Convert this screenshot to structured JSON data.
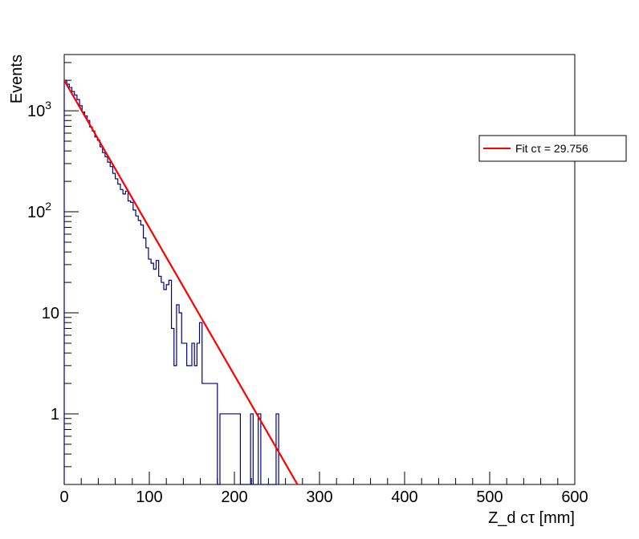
{
  "chart_data": {
    "type": "histogram",
    "title": "",
    "xlabel": "Z_d cτ [mm]",
    "ylabel": "Events",
    "xlim": [
      0,
      600
    ],
    "ylim": [
      0.2,
      3600
    ],
    "yscale": "log",
    "grid": false,
    "x_tick_labels": [
      "0",
      "100",
      "200",
      "300",
      "400",
      "500",
      "600"
    ],
    "y_tick_labels": [
      {
        "value": 1,
        "label": "1"
      },
      {
        "value": 10,
        "label": "10"
      },
      {
        "value": 100,
        "label": "10",
        "exp": "2"
      },
      {
        "value": 1000,
        "label": "10",
        "exp": "3"
      }
    ],
    "histogram": {
      "name": "",
      "color": "#000080",
      "bin_width": 3,
      "x_start": 0,
      "values": [
        2000,
        1830,
        1700,
        1550,
        1430,
        1290,
        1120,
        970,
        890,
        800,
        690,
        630,
        550,
        510,
        440,
        385,
        350,
        310,
        280,
        240,
        212,
        188,
        166,
        150,
        160,
        128,
        124,
        104,
        91,
        82,
        74,
        55,
        44,
        34,
        31,
        27,
        33,
        23,
        20,
        17,
        19,
        21,
        7,
        3,
        12,
        10,
        5,
        5,
        3,
        3,
        5,
        3,
        5,
        8,
        2,
        2,
        2,
        2,
        2,
        2,
        0,
        1,
        1,
        1,
        1,
        1,
        1,
        1,
        1,
        0,
        0,
        0,
        0,
        1,
        0,
        0,
        1,
        0,
        0,
        0,
        0,
        0,
        0,
        1
      ]
    },
    "fit": {
      "name": "Fit cτ = 29.756",
      "color": "#ff0000",
      "amplitude": 2000,
      "tau": 29.756,
      "x_range": [
        0,
        290
      ]
    },
    "legend": {
      "placement": "top-right",
      "entries": [
        "Fit cτ = 29.756"
      ]
    }
  }
}
